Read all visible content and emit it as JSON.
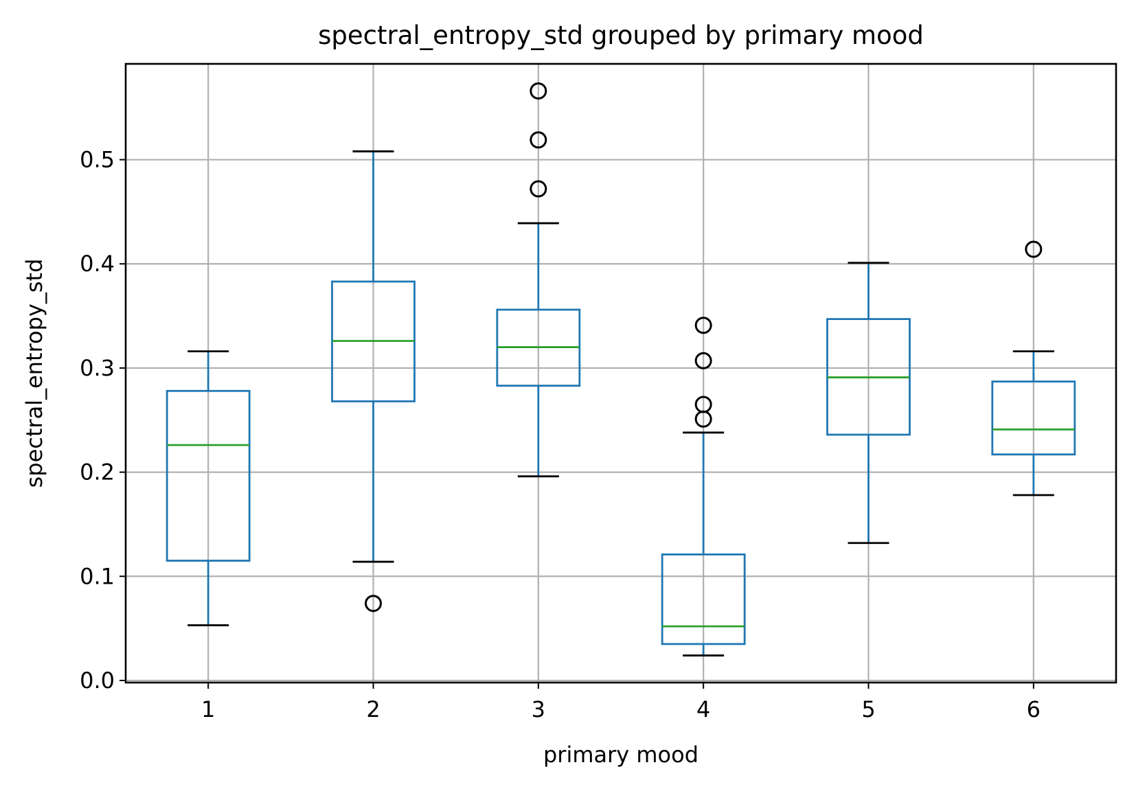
{
  "chart_data": {
    "type": "box",
    "title": "spectral_entropy_std grouped by primary mood",
    "xlabel": "primary mood",
    "ylabel": "spectral_entropy_std",
    "categories": [
      "1",
      "2",
      "3",
      "4",
      "5",
      "6"
    ],
    "ylim": [
      -0.002,
      0.592
    ],
    "yticks": [
      0.0,
      0.1,
      0.2,
      0.3,
      0.4,
      0.5
    ],
    "ytick_labels": [
      "0.0",
      "0.1",
      "0.2",
      "0.3",
      "0.4",
      "0.5"
    ],
    "grid": true,
    "boxes": [
      {
        "category": "1",
        "whisker_low": 0.053,
        "q1": 0.115,
        "median": 0.226,
        "q3": 0.278,
        "whisker_high": 0.316,
        "outliers": []
      },
      {
        "category": "2",
        "whisker_low": 0.114,
        "q1": 0.268,
        "median": 0.326,
        "q3": 0.383,
        "whisker_high": 0.508,
        "outliers": [
          0.074
        ]
      },
      {
        "category": "3",
        "whisker_low": 0.196,
        "q1": 0.283,
        "median": 0.32,
        "q3": 0.356,
        "whisker_high": 0.439,
        "outliers": [
          0.472,
          0.519,
          0.566
        ]
      },
      {
        "category": "4",
        "whisker_low": 0.024,
        "q1": 0.035,
        "median": 0.052,
        "q3": 0.121,
        "whisker_high": 0.238,
        "outliers": [
          0.251,
          0.265,
          0.307,
          0.341
        ]
      },
      {
        "category": "5",
        "whisker_low": 0.132,
        "q1": 0.236,
        "median": 0.291,
        "q3": 0.347,
        "whisker_high": 0.401,
        "outliers": []
      },
      {
        "category": "6",
        "whisker_low": 0.178,
        "q1": 0.217,
        "median": 0.241,
        "q3": 0.287,
        "whisker_high": 0.316,
        "outliers": [
          0.414
        ]
      }
    ],
    "colors": {
      "box": "#1f77b4",
      "median": "#2ca02c",
      "caps": "#000000",
      "outlier": "#000000",
      "grid": "#b0b0b0",
      "axes": "#000000"
    }
  }
}
